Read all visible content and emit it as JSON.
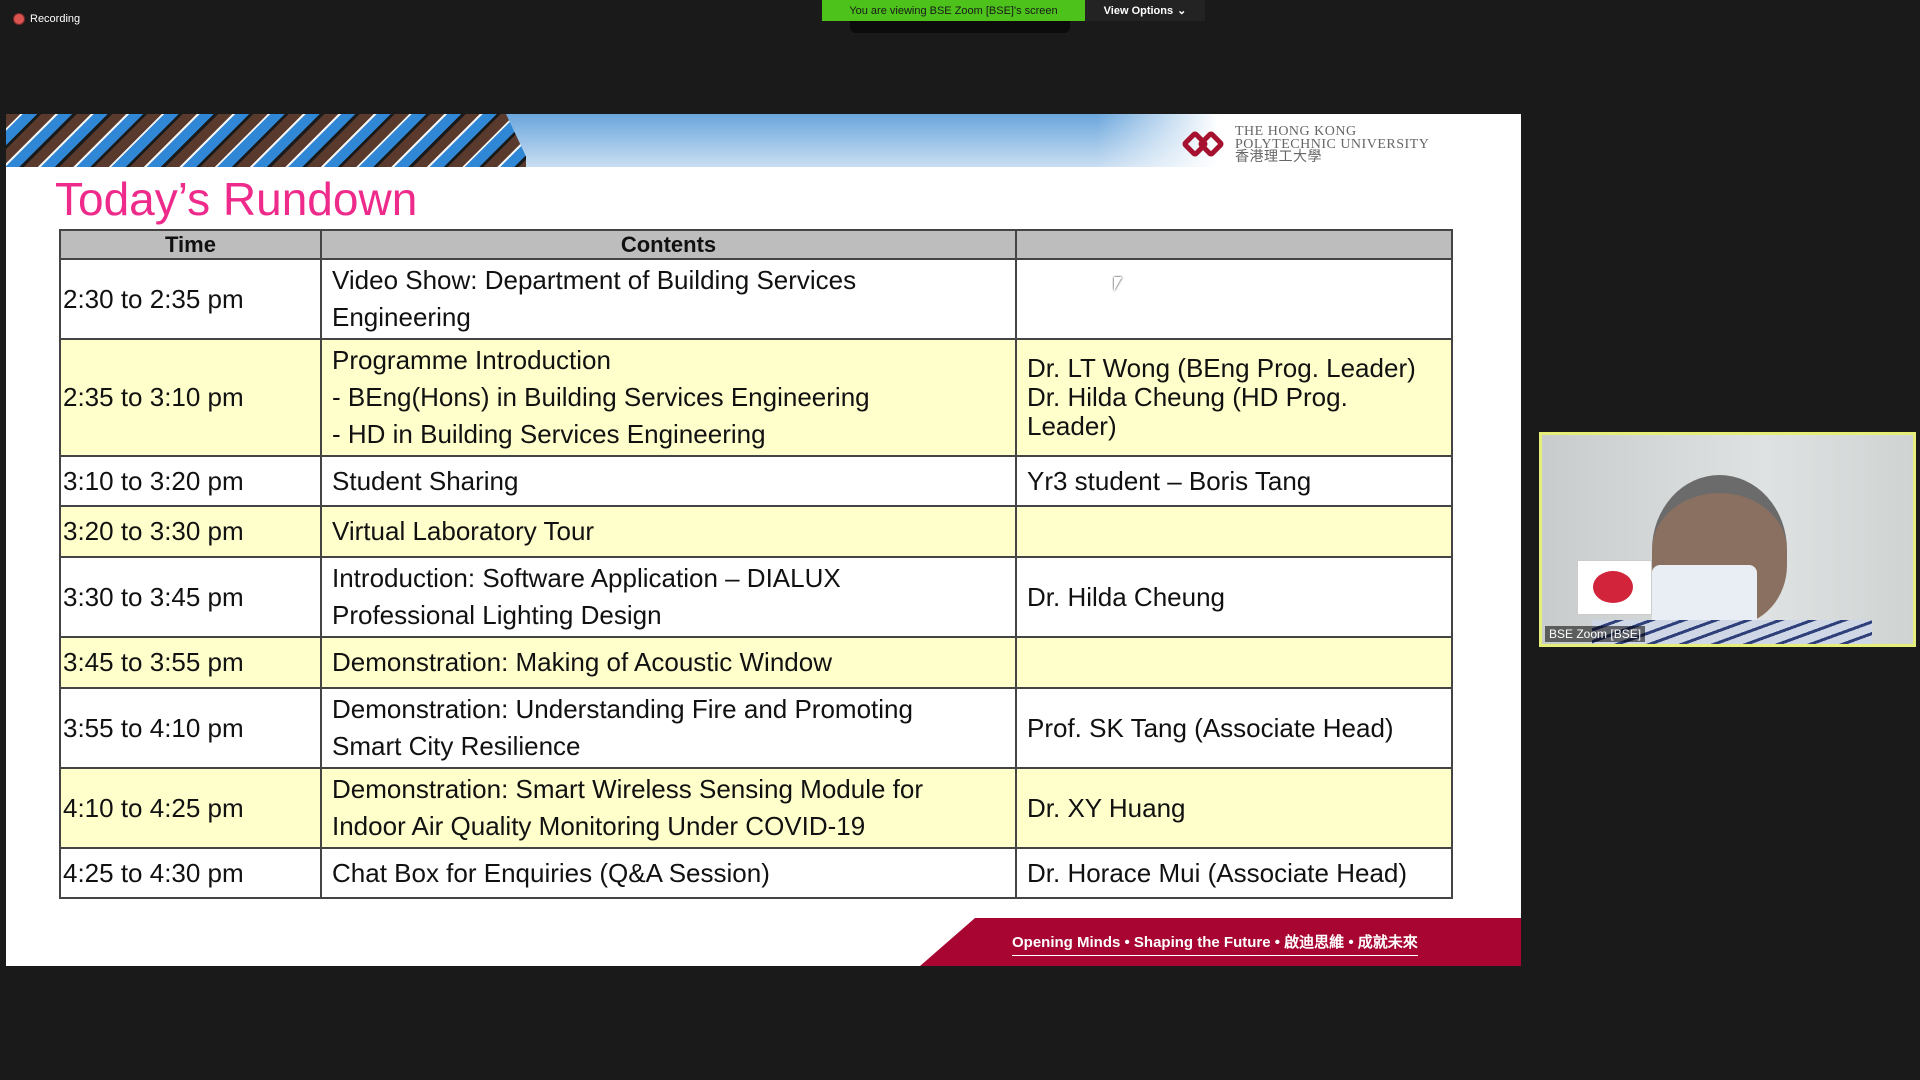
{
  "meeting": {
    "recording_label": "Recording",
    "viewing_banner": "You are viewing BSE Zoom [BSE]'s screen",
    "view_options_label": "View Options",
    "colors": {
      "viewing_banner": "#4cc21b",
      "active_speaker_border": "#e6ee7a"
    }
  },
  "slide": {
    "logo_text": [
      "The Hong Kong",
      "Polytechnic University",
      "香港理工大學"
    ],
    "title": "Today’s Rundown",
    "title_color": "#ee2a8a",
    "table": {
      "headers": [
        "Time",
        "Contents",
        ""
      ],
      "rows": [
        {
          "time": "2:30 to 2:35 pm",
          "contents": [
            "Video Show: Department of Building Services",
            "Engineering"
          ],
          "speaker": []
        },
        {
          "time": "2:35 to 3:10 pm",
          "contents": [
            "Programme Introduction",
            "- BEng(Hons) in Building Services Engineering",
            "- HD in Building Services Engineering"
          ],
          "speaker": [
            "Dr. LT Wong (BEng Prog. Leader)",
            "Dr. Hilda Cheung (HD Prog. Leader)"
          ]
        },
        {
          "time": "3:10 to 3:20 pm",
          "contents": [
            "Student Sharing"
          ],
          "speaker": [
            "Yr3 student – Boris Tang"
          ]
        },
        {
          "time": "3:20 to 3:30 pm",
          "contents": [
            "Virtual Laboratory Tour"
          ],
          "speaker": []
        },
        {
          "time": "3:30 to 3:45 pm",
          "contents": [
            "Introduction: Software Application – DIALUX",
            "Professional Lighting Design"
          ],
          "speaker": [
            "Dr. Hilda Cheung"
          ]
        },
        {
          "time": "3:45 to 3:55 pm",
          "contents": [
            "Demonstration: Making of Acoustic Window"
          ],
          "speaker": []
        },
        {
          "time": "3:55 to 4:10 pm",
          "contents": [
            "Demonstration: Understanding Fire and Promoting",
            "Smart City Resilience"
          ],
          "speaker": [
            "Prof. SK Tang (Associate Head)"
          ]
        },
        {
          "time": "4:10 to 4:25 pm",
          "contents": [
            "Demonstration: Smart Wireless Sensing Module for",
            "Indoor Air Quality Monitoring Under COVID-19"
          ],
          "speaker": [
            "Dr. XY Huang"
          ]
        },
        {
          "time": "4:25 to 4:30 pm",
          "contents": [
            "Chat Box for Enquiries (Q&A Session)"
          ],
          "speaker": [
            "Dr. Horace Mui (Associate Head)"
          ]
        }
      ]
    },
    "footer_tagline": "Opening Minds • Shaping the Future • 啟迪思維 • 成就未來"
  },
  "video_tile": {
    "name": "BSE Zoom [BSE]"
  }
}
